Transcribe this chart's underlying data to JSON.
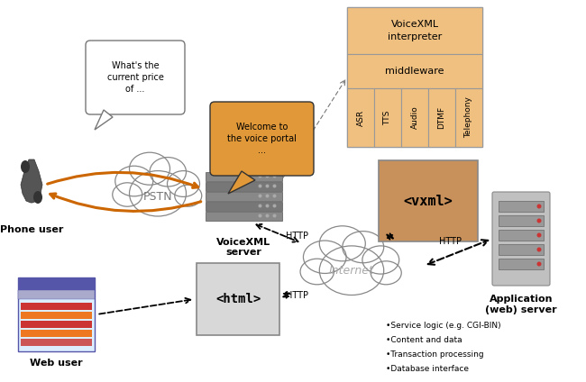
{
  "bg_color": "#ffffff",
  "box_bg": "#f0c080",
  "dark_orange": "#c8905a",
  "orange_arrow": "#cc6600",
  "phone_user_label": "Phone user",
  "web_user_label": "Web user",
  "voicexml_server_label": "VoiceXML\nserver",
  "app_server_label": "Application\n(web) server",
  "internet_label": "Internet",
  "pstn_label": "PSTN",
  "speech_bubble1": "What's the\ncurrent price\nof ...",
  "speech_bubble2": "Welcome to\nthe voice portal\n...",
  "middleware_label": "middleware",
  "interpreter_label": "VoiceXML\ninterpreter",
  "asr_label": "ASR",
  "tts_label": "TTS",
  "audio_label": "Audio",
  "dtmf_label": "DTMF",
  "telephony_label": "Telephony",
  "vxml_label": "<vxml>",
  "html_label": "<html>",
  "bullet_items": [
    "•Service logic (e.g. CGI-BIN)",
    "•Content and data",
    "•Transaction processing",
    "•Database interface"
  ],
  "http_label": "HTTP"
}
